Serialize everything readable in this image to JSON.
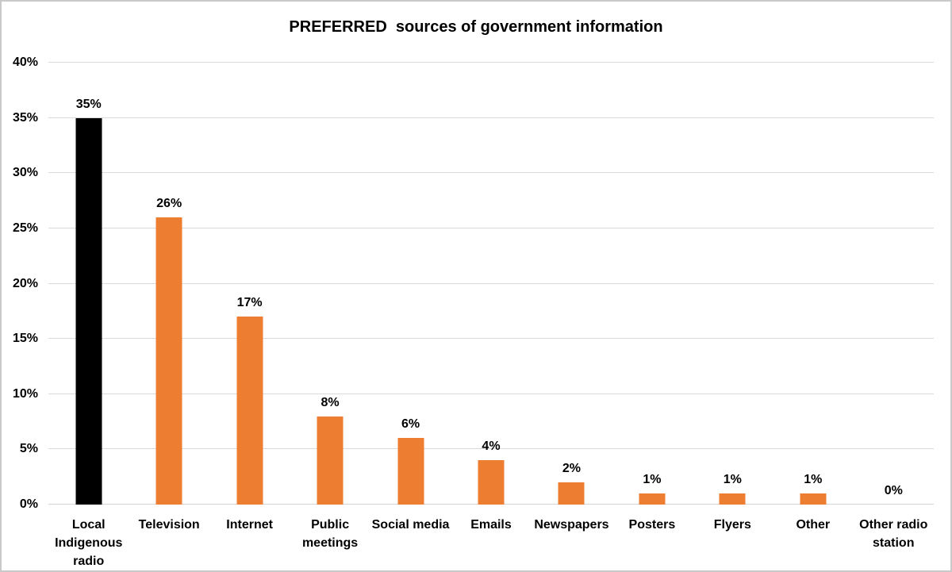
{
  "chart_data": {
    "type": "bar",
    "title": "PREFERRED  sources of government information",
    "categories": [
      "Local Indigenous radio",
      "Television",
      "Internet",
      "Public meetings",
      "Social media",
      "Emails",
      "Newspapers",
      "Posters",
      "Flyers",
      "Other",
      "Other radio station"
    ],
    "category_label_lines": [
      [
        "Local",
        "Indigenous",
        "radio"
      ],
      [
        "Television"
      ],
      [
        "Internet"
      ],
      [
        "Public",
        "meetings"
      ],
      [
        "Social media"
      ],
      [
        "Emails"
      ],
      [
        "Newspapers"
      ],
      [
        "Posters"
      ],
      [
        "Flyers"
      ],
      [
        "Other"
      ],
      [
        "Other radio",
        "station"
      ]
    ],
    "values": [
      35,
      26,
      17,
      8,
      6,
      4,
      2,
      1,
      1,
      1,
      0
    ],
    "data_labels": [
      "35%",
      "26%",
      "17%",
      "8%",
      "6%",
      "4%",
      "2%",
      "1%",
      "1%",
      "1%",
      "0%"
    ],
    "bar_colors": [
      "#000000",
      "#ED7D31",
      "#ED7D31",
      "#ED7D31",
      "#ED7D31",
      "#ED7D31",
      "#ED7D31",
      "#ED7D31",
      "#ED7D31",
      "#ED7D31",
      "#ED7D31"
    ],
    "xlabel": "",
    "ylabel": "",
    "ylim": [
      0,
      40
    ],
    "ytick_step": 5,
    "ytick_values": [
      0,
      5,
      10,
      15,
      20,
      25,
      30,
      35,
      40
    ],
    "ytick_labels": [
      "0%",
      "5%",
      "10%",
      "15%",
      "20%",
      "25%",
      "30%",
      "35%",
      "40%"
    ],
    "grid": true,
    "legend": false,
    "colors": {
      "default_bar": "#ED7D31",
      "highlight_bar": "#000000",
      "gridline": "#D9D9D9",
      "text": "#000000",
      "background": "#FFFFFF",
      "border": "#C9C9C9"
    }
  }
}
